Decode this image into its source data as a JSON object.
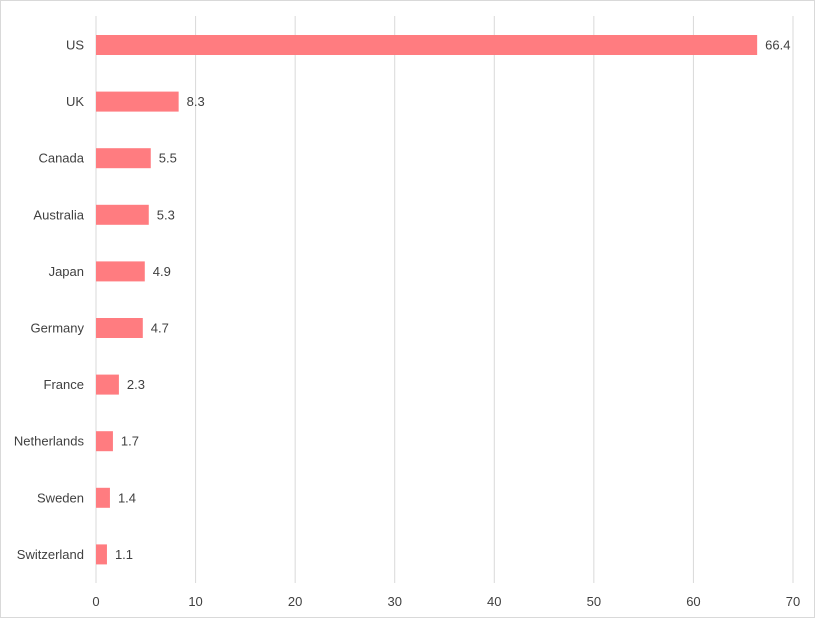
{
  "chart_data": {
    "type": "bar",
    "orientation": "horizontal",
    "categories": [
      "US",
      "UK",
      "Canada",
      "Australia",
      "Japan",
      "Germany",
      "France",
      "Netherlands",
      "Sweden",
      "Switzerland"
    ],
    "values": [
      66.4,
      8.3,
      5.5,
      5.3,
      4.9,
      4.7,
      2.3,
      1.7,
      1.4,
      1.1
    ],
    "xlim": [
      0,
      70
    ],
    "x_ticks": [
      0,
      10,
      20,
      30,
      40,
      50,
      60,
      70
    ],
    "grid": "vertical",
    "data_labels": true,
    "bar_color": "#ff7c80",
    "title": "",
    "xlabel": "",
    "ylabel": ""
  }
}
